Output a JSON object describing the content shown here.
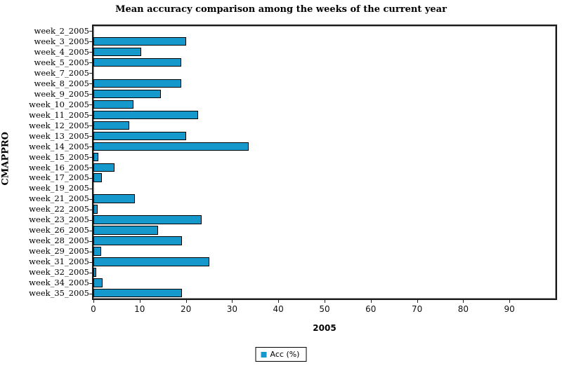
{
  "title": "Mean accuracy comparison among the weeks of the current year",
  "xlabel": "2005",
  "ylabel": "CMAPPRO",
  "legend": {
    "label": "Acc (%)",
    "swatch_color": "#1598CC",
    "position": "bottom-center"
  },
  "colors": {
    "bar_fill": "#1598CC",
    "bar_border": "#000000",
    "plot_border": "#1a1a1a",
    "background": "#ffffff"
  },
  "chart_data": {
    "type": "bar",
    "orientation": "horizontal",
    "title": "Mean accuracy comparison among the weeks of the current year",
    "xlabel": "2005",
    "ylabel": "CMAPPRO",
    "legend_entries": [
      "Acc (%)"
    ],
    "legend_position": "bottom",
    "grid": false,
    "xlim": [
      0,
      100
    ],
    "xticks": [
      0,
      10,
      20,
      30,
      40,
      50,
      60,
      70,
      80,
      90
    ],
    "categories": [
      "week_2_2005",
      "week_3_2005",
      "week_4_2005",
      "week_5_2005",
      "week_7_2005",
      "week_8_2005",
      "week_9_2005",
      "week_10_2005",
      "week_11_2005",
      "week_12_2005",
      "week_13_2005",
      "week_14_2005",
      "week_15_2005",
      "week_16_2005",
      "week_17_2005",
      "week_19_2005",
      "week_21_2005",
      "week_22_2005",
      "week_23_2005",
      "week_26_2005",
      "week_28_2005",
      "week_29_2005",
      "week_31_2005",
      "week_32_2005",
      "week_34_2005",
      "week_35_2005"
    ],
    "values": [
      0,
      20,
      10.3,
      19,
      0,
      19,
      14.6,
      8.6,
      22.7,
      7.7,
      20.1,
      33.6,
      1,
      4.6,
      1.8,
      0,
      9,
      0.9,
      23.4,
      14,
      19.2,
      1.7,
      25,
      0.6,
      1.9,
      19.2
    ]
  }
}
